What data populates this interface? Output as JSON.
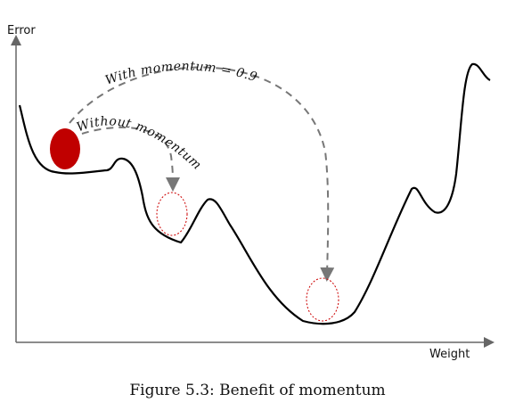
{
  "axes": {
    "y_label": "Error",
    "x_label": "Weight"
  },
  "annotations": {
    "with_momentum": "With momentum = 0.9",
    "without_momentum": "Without momentum"
  },
  "caption": "Figure 5.3: Benefit of momentum",
  "colors": {
    "ball_fill": "#c00000",
    "curve": "#000000",
    "arrow": "#777777",
    "target_circle": "#cc0000"
  }
}
